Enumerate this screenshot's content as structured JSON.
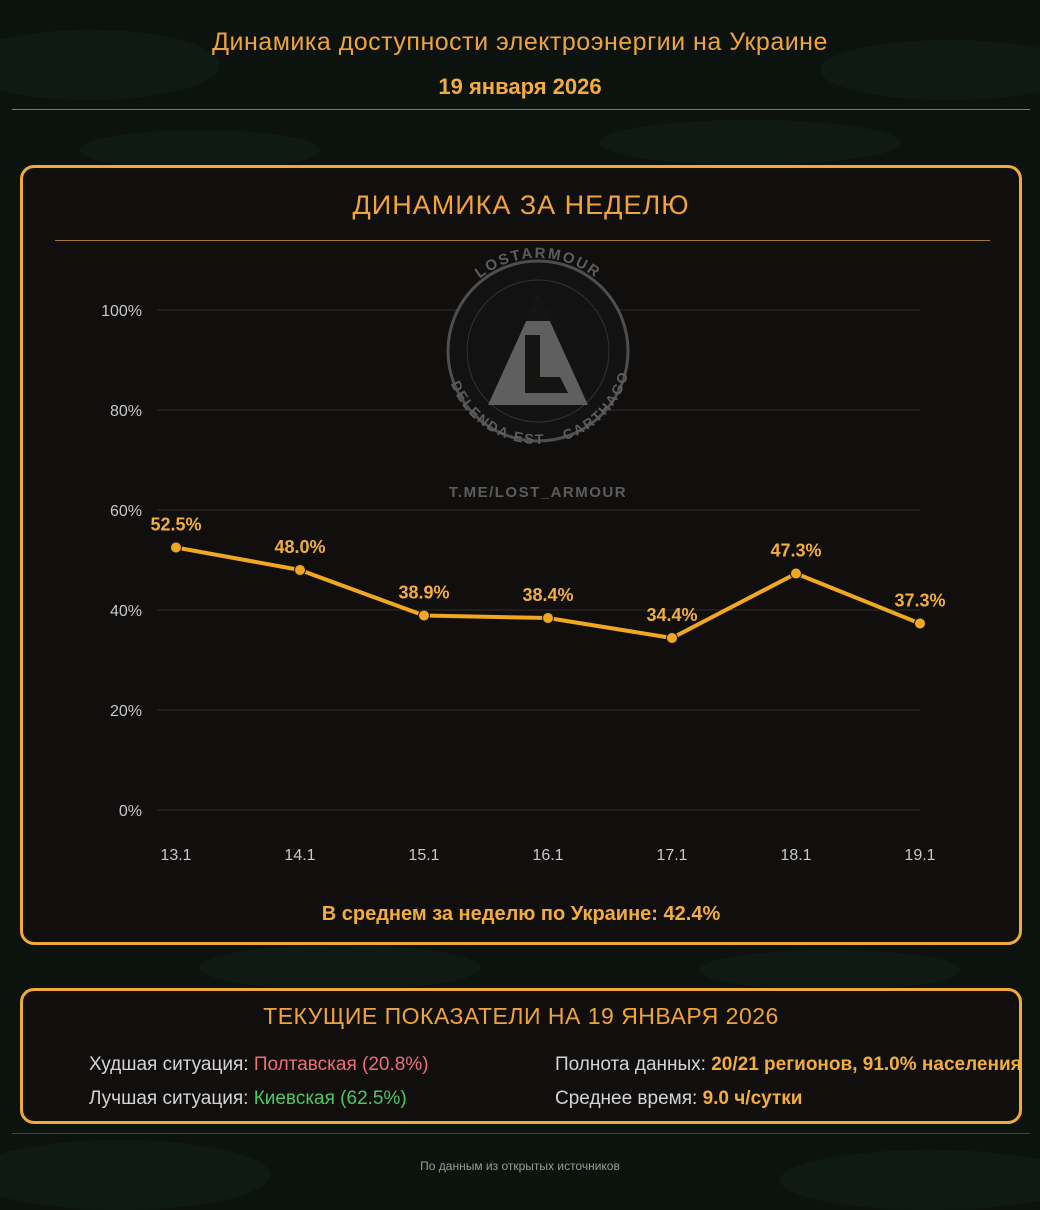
{
  "header": {
    "title": "Динамика доступности электроэнергии на Украине",
    "date": "19 января 2026"
  },
  "chart_panel": {
    "title": "ДИНАМИКА ЗА НЕДЕЛЮ",
    "average_label": "В среднем за неделю по Украине:",
    "average_value": "42.4%"
  },
  "watermark": {
    "ring_top": "LOSTARMOUR",
    "ring_right": "CARTHAGO",
    "ring_bottom": "DELENDA EST",
    "link": "T.ME/LOST_ARMOUR"
  },
  "chart_data": {
    "type": "line",
    "categories": [
      "13.1",
      "14.1",
      "15.1",
      "16.1",
      "17.1",
      "18.1",
      "19.1"
    ],
    "series": [
      {
        "values": [
          52.5,
          48.0,
          38.9,
          38.4,
          34.4,
          47.3,
          37.3
        ]
      }
    ],
    "data_labels": [
      "52.5%",
      "48.0%",
      "38.9%",
      "38.4%",
      "34.4%",
      "47.3%",
      "37.3%"
    ],
    "y_ticks": [
      0,
      20,
      40,
      60,
      80,
      100
    ],
    "y_tick_labels": [
      "0%",
      "20%",
      "40%",
      "60%",
      "80%",
      "100%"
    ],
    "ylim": [
      0,
      100
    ],
    "grid": true,
    "line_color": "#f0a820",
    "grid_color": "#2f2f2f"
  },
  "stats": {
    "title": "ТЕКУЩИЕ ПОКАЗАТЕЛИ НА 19 ЯНВАРЯ 2026",
    "worst_label": "Худшая ситуация:",
    "worst_value": "Полтавская (20.8%)",
    "best_label": "Лучшая ситуация:",
    "best_value": "Киевская (62.5%)",
    "coverage_label": "Полнота данных:",
    "coverage_value": "20/21 регионов, 91.0% населения",
    "avg_time_label": "Среднее время:",
    "avg_time_value": "9.0 ч/сутки"
  },
  "footer": {
    "source": "По данным из открытых источников"
  }
}
